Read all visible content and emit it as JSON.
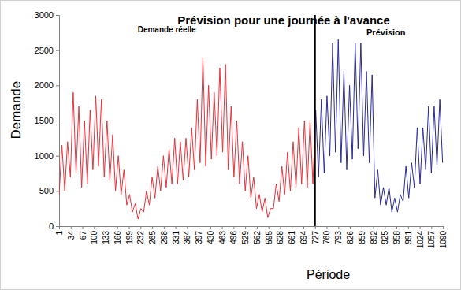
{
  "chart_data": {
    "type": "line",
    "title": "Prévision pour une journée à l'avance",
    "x_label": "Période",
    "y_label": "Demande",
    "xlim": [
      1,
      1092
    ],
    "xticks": [
      1,
      34,
      67,
      100,
      133,
      166,
      199,
      232,
      265,
      298,
      331,
      364,
      397,
      430,
      463,
      496,
      529,
      562,
      595,
      628,
      661,
      694,
      727,
      760,
      793,
      826,
      859,
      892,
      925,
      958,
      991,
      1024,
      1057,
      1090
    ],
    "ylim": [
      0,
      3000
    ],
    "yticks": [
      0,
      500,
      1000,
      1500,
      2000,
      2500,
      3000
    ],
    "grid": false,
    "divider": 727,
    "series": [
      {
        "name": "Demande réelle",
        "color": "#e8323c",
        "x": [
          1,
          9,
          17,
          25,
          33,
          41,
          49,
          57,
          65,
          73,
          81,
          89,
          97,
          105,
          113,
          121,
          129,
          137,
          145,
          153,
          161,
          169,
          177,
          185,
          193,
          201,
          209,
          217,
          225,
          233,
          241,
          249,
          257,
          265,
          273,
          281,
          289,
          297,
          305,
          313,
          321,
          329,
          337,
          345,
          353,
          361,
          369,
          377,
          385,
          393,
          401,
          409,
          417,
          425,
          433,
          441,
          449,
          457,
          465,
          473,
          481,
          489,
          497,
          505,
          513,
          521,
          529,
          537,
          545,
          553,
          561,
          569,
          577,
          585,
          593,
          601,
          609,
          617,
          625,
          633,
          641,
          649,
          657,
          665,
          673,
          681,
          689,
          697,
          705,
          713,
          721,
          729
        ],
        "values": [
          450,
          1150,
          500,
          1200,
          700,
          1900,
          750,
          1700,
          550,
          1500,
          600,
          1650,
          800,
          1850,
          850,
          1800,
          700,
          1500,
          650,
          1300,
          500,
          1000,
          450,
          800,
          300,
          450,
          200,
          320,
          100,
          250,
          200,
          500,
          300,
          700,
          400,
          850,
          500,
          1000,
          550,
          1100,
          600,
          1250,
          600,
          1200,
          650,
          1250,
          700,
          1400,
          800,
          1800,
          900,
          2400,
          850,
          2000,
          950,
          1900,
          1000,
          2250,
          1050,
          2300,
          800,
          1700,
          700,
          1500,
          600,
          1200,
          500,
          1000,
          400,
          700,
          250,
          450,
          200,
          400,
          120,
          250,
          250,
          600,
          350,
          850,
          450,
          1050,
          500,
          1200,
          550,
          1400,
          600,
          1500,
          550,
          1500,
          600,
          1650
        ]
      },
      {
        "name": "Prévision",
        "color": "#2b2b96",
        "x": [
          729,
          737,
          745,
          753,
          761,
          769,
          777,
          785,
          793,
          801,
          809,
          817,
          825,
          833,
          841,
          849,
          857,
          865,
          873,
          881,
          889,
          897,
          905,
          913,
          921,
          929,
          937,
          945,
          953,
          961,
          969,
          977,
          985,
          993,
          1001,
          1009,
          1017,
          1025,
          1033,
          1041,
          1049,
          1057,
          1065,
          1073,
          1081,
          1089
        ],
        "values": [
          1650,
          700,
          1800,
          750,
          1850,
          1000,
          2600,
          1050,
          2650,
          900,
          2200,
          800,
          2000,
          950,
          2600,
          1100,
          2600,
          1000,
          2200,
          900,
          2150,
          400,
          800,
          300,
          550,
          300,
          550,
          200,
          400,
          200,
          450,
          350,
          850,
          400,
          900,
          550,
          1400,
          600,
          1400,
          800,
          1700,
          750,
          1700,
          850,
          1800,
          900
        ]
      }
    ]
  }
}
